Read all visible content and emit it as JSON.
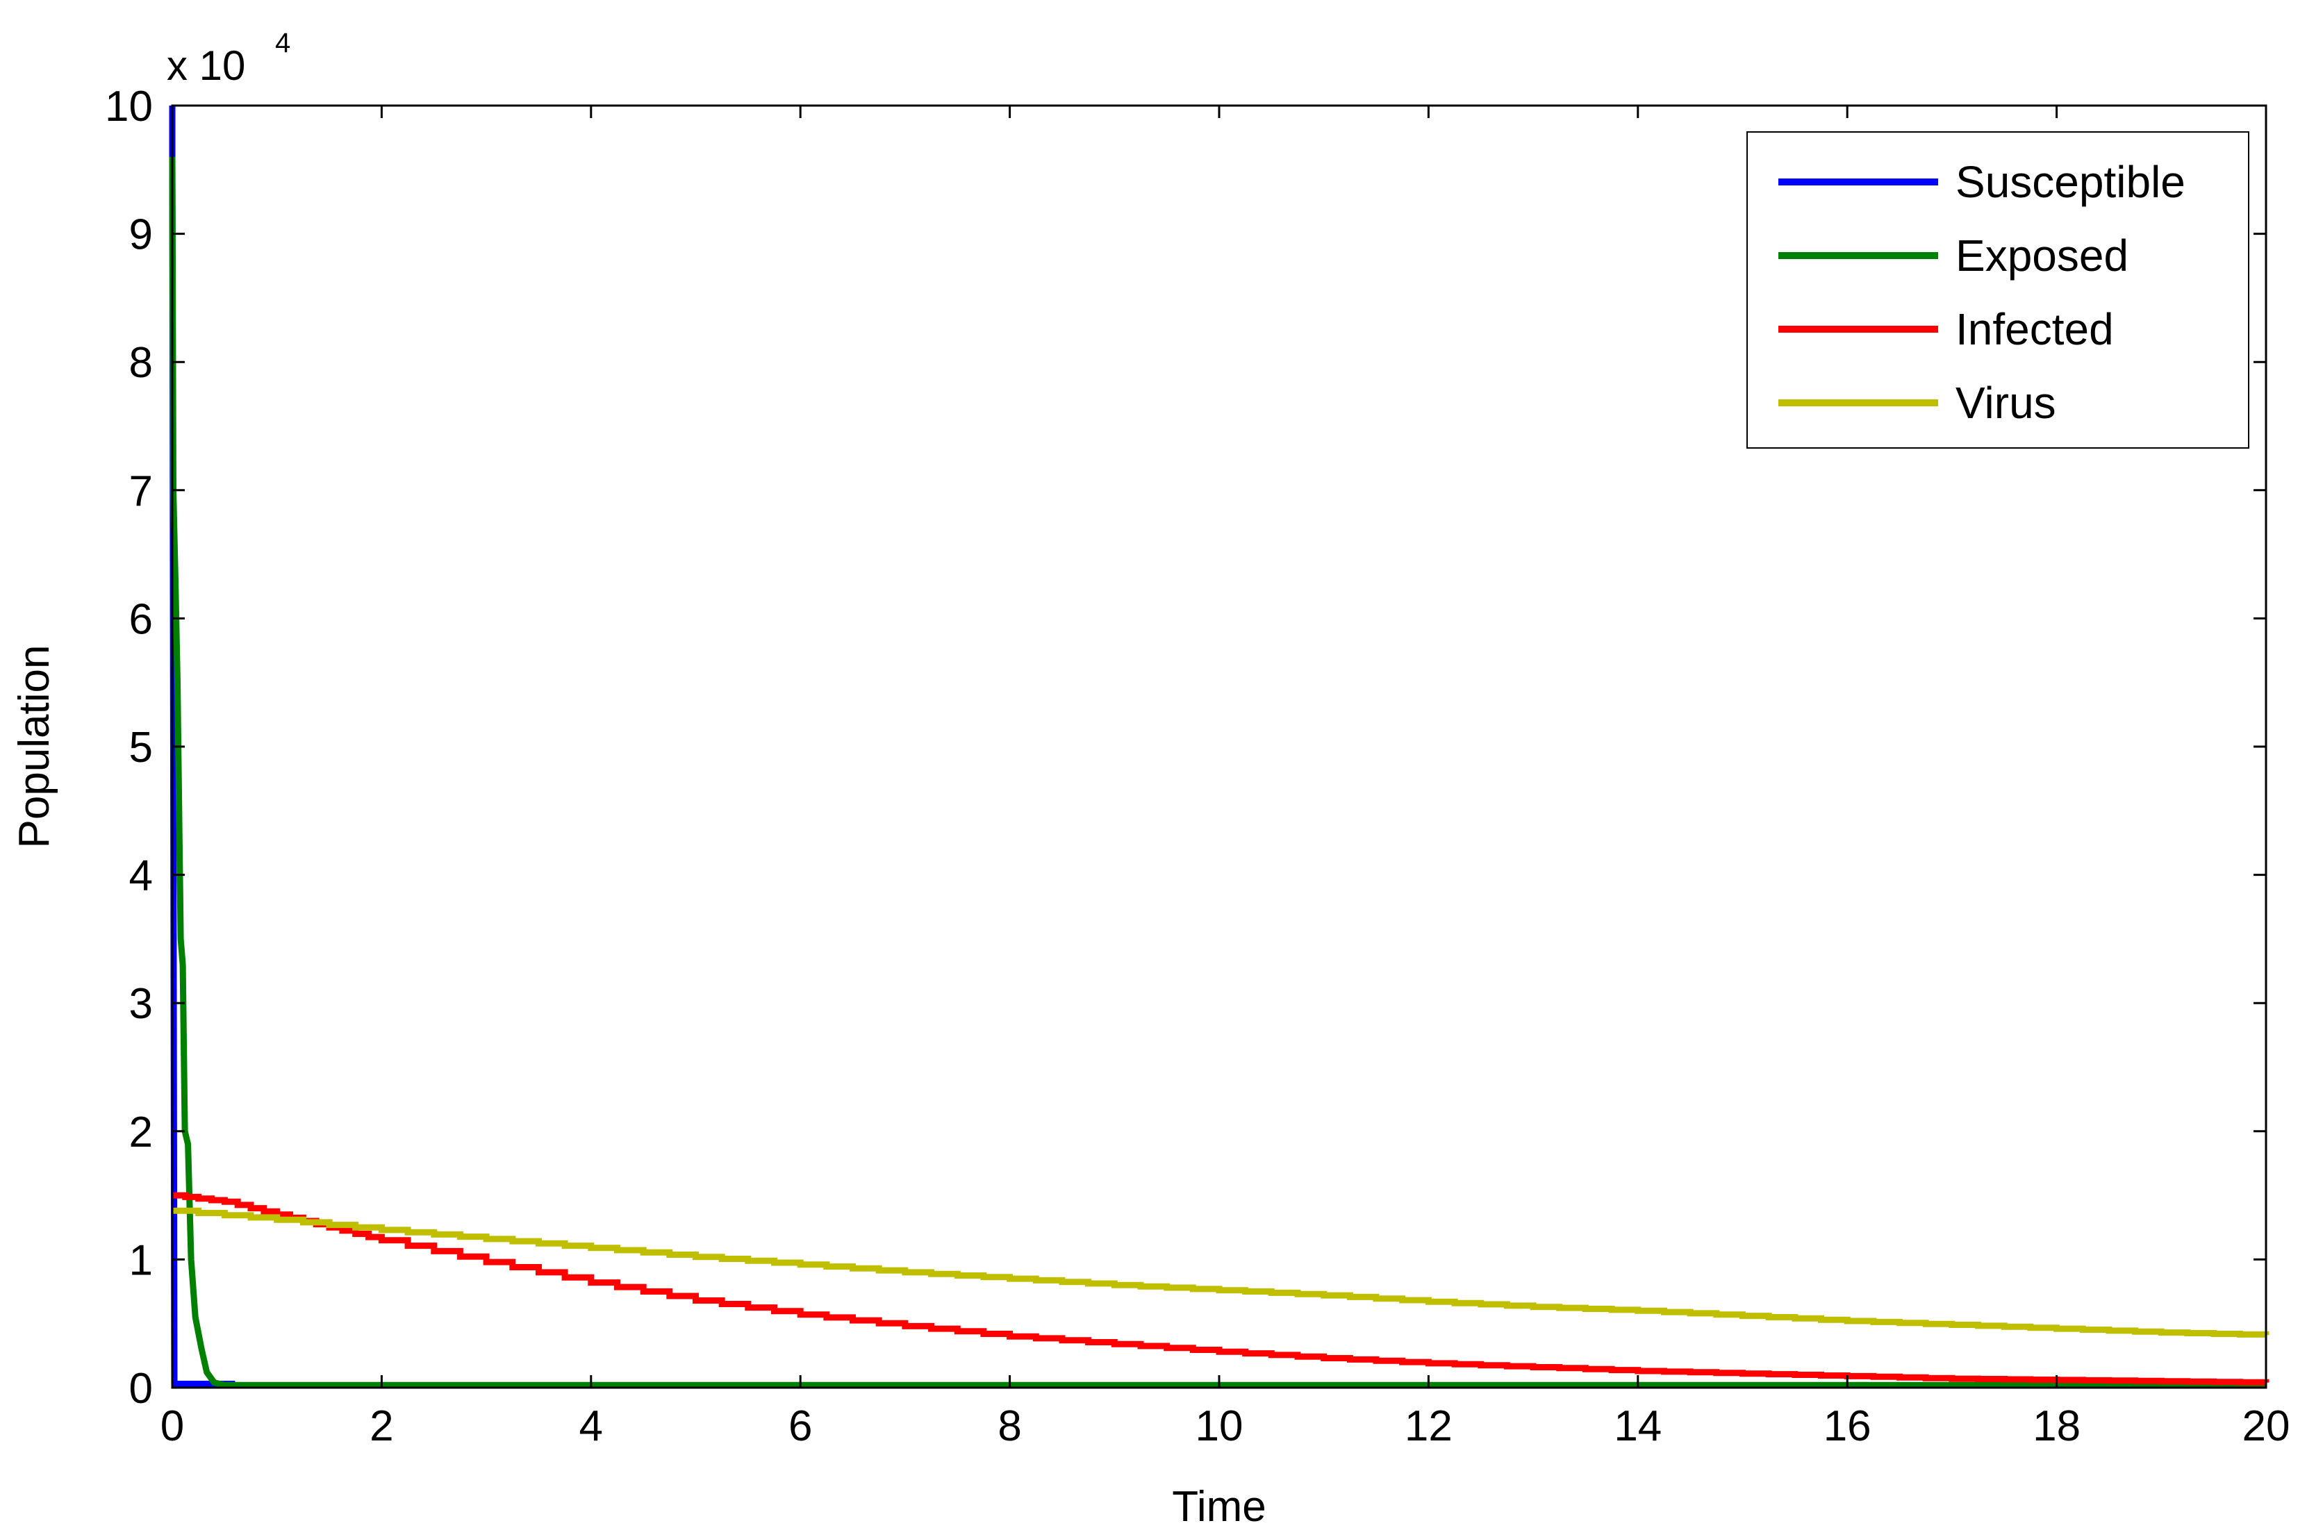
{
  "chart_data": {
    "type": "line",
    "title": "",
    "xlabel": "Time",
    "ylabel": "Population",
    "y_exponent_label": "x 10",
    "y_exponent": "4",
    "xlim": [
      0,
      20
    ],
    "ylim": [
      0,
      10
    ],
    "x_scale": "linear",
    "y_scale": "linear",
    "y_units_multiplier": 10000,
    "grid": false,
    "box": true,
    "legend_position": "top-right",
    "x_ticks": [
      0,
      2,
      4,
      6,
      8,
      10,
      12,
      14,
      16,
      18,
      20
    ],
    "y_ticks": [
      0,
      1,
      2,
      3,
      4,
      5,
      6,
      7,
      8,
      9,
      10
    ],
    "x_tick_labels": [
      "0",
      "2",
      "4",
      "6",
      "8",
      "10",
      "12",
      "14",
      "16",
      "18",
      "20"
    ],
    "y_tick_labels": [
      "0",
      "1",
      "2",
      "3",
      "4",
      "5",
      "6",
      "7",
      "8",
      "9",
      "10"
    ],
    "series": [
      {
        "name": "Susceptible",
        "color": "#0000ff",
        "step": false,
        "points": [
          [
            0,
            10
          ],
          [
            0,
            9.6
          ],
          [
            0.02,
            0.03
          ],
          [
            0.6,
            0.03
          ]
        ]
      },
      {
        "name": "Exposed",
        "color": "#008000",
        "step": false,
        "points": [
          [
            0,
            9.6
          ],
          [
            0.01,
            7.0
          ],
          [
            0.03,
            6.3
          ],
          [
            0.05,
            5.5
          ],
          [
            0.08,
            3.5
          ],
          [
            0.1,
            3.3
          ],
          [
            0.12,
            2.0
          ],
          [
            0.15,
            1.9
          ],
          [
            0.18,
            1.0
          ],
          [
            0.22,
            0.55
          ],
          [
            0.28,
            0.3
          ],
          [
            0.33,
            0.12
          ],
          [
            0.4,
            0.04
          ],
          [
            0.5,
            0.02
          ],
          [
            20,
            0.02
          ]
        ]
      },
      {
        "name": "Infected",
        "color": "#ff0000",
        "step": true,
        "points": [
          [
            0,
            1.5
          ],
          [
            0.5,
            1.45
          ],
          [
            1,
            1.35
          ],
          [
            1.5,
            1.25
          ],
          [
            2,
            1.15
          ],
          [
            3,
            0.98
          ],
          [
            4,
            0.82
          ],
          [
            5,
            0.68
          ],
          [
            6,
            0.57
          ],
          [
            7,
            0.48
          ],
          [
            8,
            0.4
          ],
          [
            9,
            0.34
          ],
          [
            10,
            0.28
          ],
          [
            11,
            0.23
          ],
          [
            12,
            0.19
          ],
          [
            13,
            0.16
          ],
          [
            14,
            0.13
          ],
          [
            15,
            0.11
          ],
          [
            16,
            0.09
          ],
          [
            17,
            0.07
          ],
          [
            18,
            0.06
          ],
          [
            19,
            0.05
          ],
          [
            20,
            0.04
          ]
        ]
      },
      {
        "name": "Virus",
        "color": "#bfbf00",
        "step": true,
        "points": [
          [
            0,
            1.38
          ],
          [
            1,
            1.31
          ],
          [
            2,
            1.23
          ],
          [
            3,
            1.16
          ],
          [
            4,
            1.09
          ],
          [
            5,
            1.02
          ],
          [
            6,
            0.96
          ],
          [
            7,
            0.9
          ],
          [
            8,
            0.85
          ],
          [
            9,
            0.8
          ],
          [
            10,
            0.76
          ],
          [
            11,
            0.72
          ],
          [
            12,
            0.67
          ],
          [
            13,
            0.63
          ],
          [
            14,
            0.6
          ],
          [
            15,
            0.56
          ],
          [
            16,
            0.52
          ],
          [
            17,
            0.49
          ],
          [
            18,
            0.46
          ],
          [
            19,
            0.43
          ],
          [
            20,
            0.41
          ]
        ]
      }
    ]
  }
}
